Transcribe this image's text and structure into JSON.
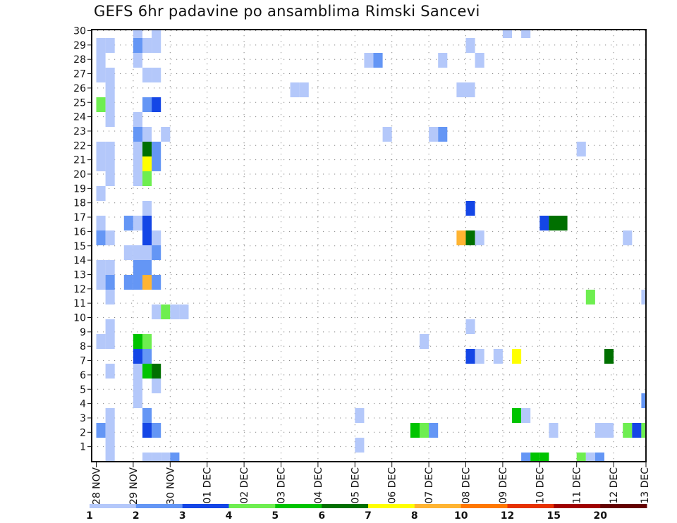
{
  "chart_data": {
    "type": "heatmap",
    "title": "GEFS 6hr padavine po ansamblima Rimski Sancevi",
    "xlabel": "",
    "ylabel": "",
    "x_tick_labels": [
      "28 NOV",
      "29 NOV",
      "30 NOV",
      "01 DEC",
      "02 DEC",
      "03 DEC",
      "04 DEC",
      "05 DEC",
      "06 DEC",
      "07 DEC",
      "08 DEC",
      "09 DEC",
      "10 DEC",
      "11 DEC",
      "12 DEC",
      "13 DEC"
    ],
    "x_steps_per_day": 4,
    "x_steps_total": 60,
    "y_tick_labels": [
      "1",
      "2",
      "3",
      "4",
      "5",
      "6",
      "7",
      "8",
      "9",
      "10",
      "11",
      "12",
      "13",
      "14",
      "15",
      "16",
      "17",
      "18",
      "19",
      "20",
      "21",
      "22",
      "23",
      "24",
      "25",
      "26",
      "27",
      "28",
      "29",
      "30"
    ],
    "ylim": [
      0,
      30
    ],
    "grid": true,
    "legend": {
      "placement": "bottom",
      "levels": [
        "1",
        "2",
        "3",
        "4",
        "5",
        "6",
        "7",
        "8",
        "10",
        "12",
        "15",
        "20"
      ],
      "colors": [
        "#b4c8fa",
        "#6496f5",
        "#1446e6",
        "#6eee50",
        "#00c400",
        "#007000",
        "#ffff00",
        "#ffb432",
        "#ff7800",
        "#e63200",
        "#a00000",
        "#640000"
      ]
    },
    "class_letters": "abcdefghijkl",
    "rows_top_to_bottom": [
      "4a 6a 44a 46a",
      "0a 1a 4b 5a 6a 40a",
      "0a 4a 29a 30b 37a 41a",
      "0a 1a 5a 6a",
      "1a 21a 22a 39a 40a",
      "0d 1a 5b 6c",
      "1a 4a",
      "4b 5a 7a 31a 36a 37b",
      "0a 1a 4a 5f 6b 52a",
      "0a 1a 4a 5g 6b",
      "1a 4a 5d",
      "0a",
      "5a 40c",
      "0a 3b 4a 5c 48c 49f 50f",
      "0b 1a 5c 6a 39h 40f 41a 57a",
      "3a 4a 5a 6b",
      "0a 1a 4b 5b",
      "0a 1b 3b 4b 5h 6b",
      "1a 53d 59a",
      "6a 7d 8a 9a",
      "1a 40a",
      "0a 1a 4e 5d 35a",
      "4c 5b 40c 41a 43a 45g 55f",
      "1a 4a 5e 6f",
      "4a 6a",
      "4a 59b",
      "1a 5b 28a 45e 46a",
      "0b 1a 5c 6b 34e 35d 36b 49a 54a 55a 57d 58c 59d",
      "1a 28a",
      "1a 5a 6a 7a 8b 46b 47e 48e 52d 53a 54b"
    ]
  }
}
